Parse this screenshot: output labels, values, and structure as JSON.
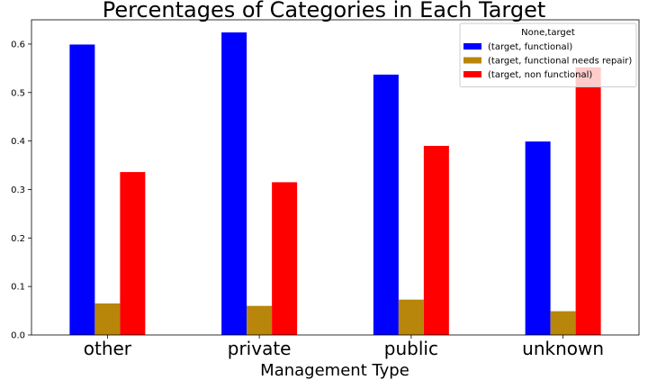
{
  "chart_data": {
    "type": "bar",
    "title": "Percentages of Categories in Each Target",
    "xlabel": "Management Type",
    "ylabel": "",
    "categories": [
      "other",
      "private",
      "public",
      "unknown"
    ],
    "series": [
      {
        "name": "(target, functional)",
        "color": "#0000ff",
        "values": [
          0.599,
          0.624,
          0.537,
          0.399
        ]
      },
      {
        "name": "(target, functional needs repair)",
        "color": "#b8860b",
        "values": [
          0.065,
          0.06,
          0.073,
          0.049
        ]
      },
      {
        "name": "(target, non functional)",
        "color": "#ff0000",
        "values": [
          0.336,
          0.315,
          0.39,
          0.552
        ]
      }
    ],
    "ylim": [
      0,
      0.65
    ],
    "yticks": [
      0.0,
      0.1,
      0.2,
      0.3,
      0.4,
      0.5,
      0.6
    ],
    "ytick_labels": [
      "0.0",
      "0.1",
      "0.2",
      "0.3",
      "0.4",
      "0.5",
      "0.6"
    ],
    "grid": false,
    "legend": {
      "title": "None,target",
      "placement": "top-right"
    }
  }
}
